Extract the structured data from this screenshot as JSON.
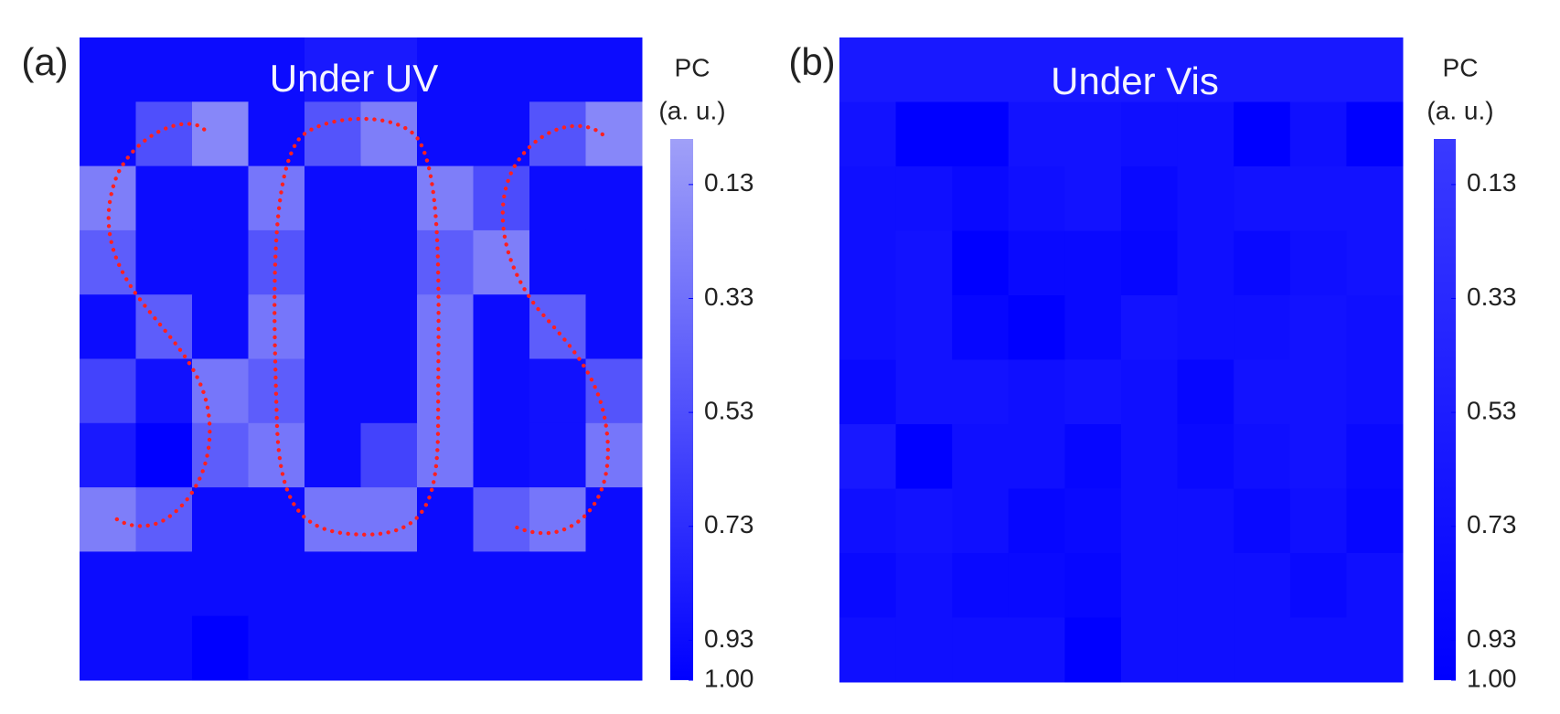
{
  "chart_data": [
    {
      "type": "heatmap",
      "panel_label": "(a)",
      "title": "Under UV",
      "values": [
        [
          0.93,
          0.93,
          0.93,
          0.93,
          0.85,
          0.85,
          0.93,
          0.93,
          0.93,
          0.93
        ],
        [
          0.93,
          0.53,
          0.2,
          0.93,
          0.5,
          0.25,
          0.93,
          0.93,
          0.5,
          0.2
        ],
        [
          0.25,
          0.93,
          0.93,
          0.3,
          0.93,
          0.93,
          0.25,
          0.55,
          0.93,
          0.93
        ],
        [
          0.45,
          0.93,
          0.93,
          0.5,
          0.93,
          0.93,
          0.45,
          0.25,
          0.93,
          0.93
        ],
        [
          0.93,
          0.45,
          0.93,
          0.3,
          0.93,
          0.93,
          0.3,
          0.93,
          0.45,
          0.93
        ],
        [
          0.6,
          0.9,
          0.3,
          0.45,
          0.93,
          0.93,
          0.3,
          0.93,
          0.9,
          0.5
        ],
        [
          0.85,
          1.0,
          0.45,
          0.3,
          0.93,
          0.6,
          0.3,
          0.93,
          0.9,
          0.3
        ],
        [
          0.25,
          0.45,
          0.93,
          0.93,
          0.3,
          0.3,
          0.93,
          0.45,
          0.3,
          0.93
        ],
        [
          0.93,
          0.93,
          0.93,
          0.93,
          0.93,
          0.93,
          0.93,
          0.93,
          0.93,
          0.93
        ],
        [
          0.93,
          0.93,
          1.0,
          0.93,
          0.93,
          0.93,
          0.93,
          0.93,
          0.93,
          0.93
        ]
      ],
      "colorbar": {
        "label_lines": [
          "PC",
          "(a. u.)"
        ],
        "lim": [
          0.05,
          1.0
        ],
        "colors": [
          "#a0a0f8",
          "#0000ff"
        ],
        "ticks": [
          0.13,
          0.33,
          0.53,
          0.73,
          0.93,
          {
            "value": 1,
            "label": "1.00"
          }
        ]
      }
    },
    {
      "type": "heatmap",
      "panel_label": "(b)",
      "title": "Under Vis",
      "values": [
        [
          0.6,
          0.6,
          0.6,
          0.6,
          0.6,
          0.6,
          0.6,
          0.6,
          0.6,
          0.6
        ],
        [
          0.7,
          1.0,
          1.0,
          0.7,
          0.7,
          0.75,
          0.75,
          1.0,
          0.75,
          1.0
        ],
        [
          0.75,
          0.75,
          0.85,
          0.75,
          0.7,
          0.85,
          0.75,
          0.7,
          0.7,
          0.7
        ],
        [
          0.75,
          0.7,
          1.0,
          0.85,
          0.85,
          0.9,
          0.75,
          0.85,
          0.75,
          0.7
        ],
        [
          0.75,
          0.7,
          0.9,
          1.0,
          0.85,
          0.7,
          0.75,
          0.75,
          0.7,
          0.75
        ],
        [
          0.85,
          0.7,
          0.7,
          0.75,
          0.7,
          0.75,
          0.9,
          0.7,
          0.7,
          0.75
        ],
        [
          0.6,
          1.0,
          0.75,
          0.75,
          0.9,
          0.75,
          0.85,
          0.75,
          0.7,
          0.85
        ],
        [
          0.75,
          0.7,
          0.75,
          0.9,
          0.85,
          0.75,
          0.75,
          0.85,
          0.75,
          0.9
        ],
        [
          0.85,
          0.75,
          0.85,
          0.85,
          0.9,
          0.75,
          0.75,
          0.75,
          0.85,
          0.75
        ],
        [
          0.75,
          0.75,
          0.75,
          0.75,
          1.0,
          0.75,
          0.75,
          0.75,
          0.75,
          0.75
        ]
      ],
      "colorbar": {
        "label_lines": [
          "PC",
          "(a. u.)"
        ],
        "lim": [
          0.05,
          1.0
        ],
        "colors": [
          "#3a3aff",
          "#0000ff"
        ],
        "ticks": [
          0.13,
          0.33,
          0.53,
          0.73,
          0.93,
          {
            "value": 1,
            "label": "1.00"
          }
        ]
      }
    }
  ]
}
